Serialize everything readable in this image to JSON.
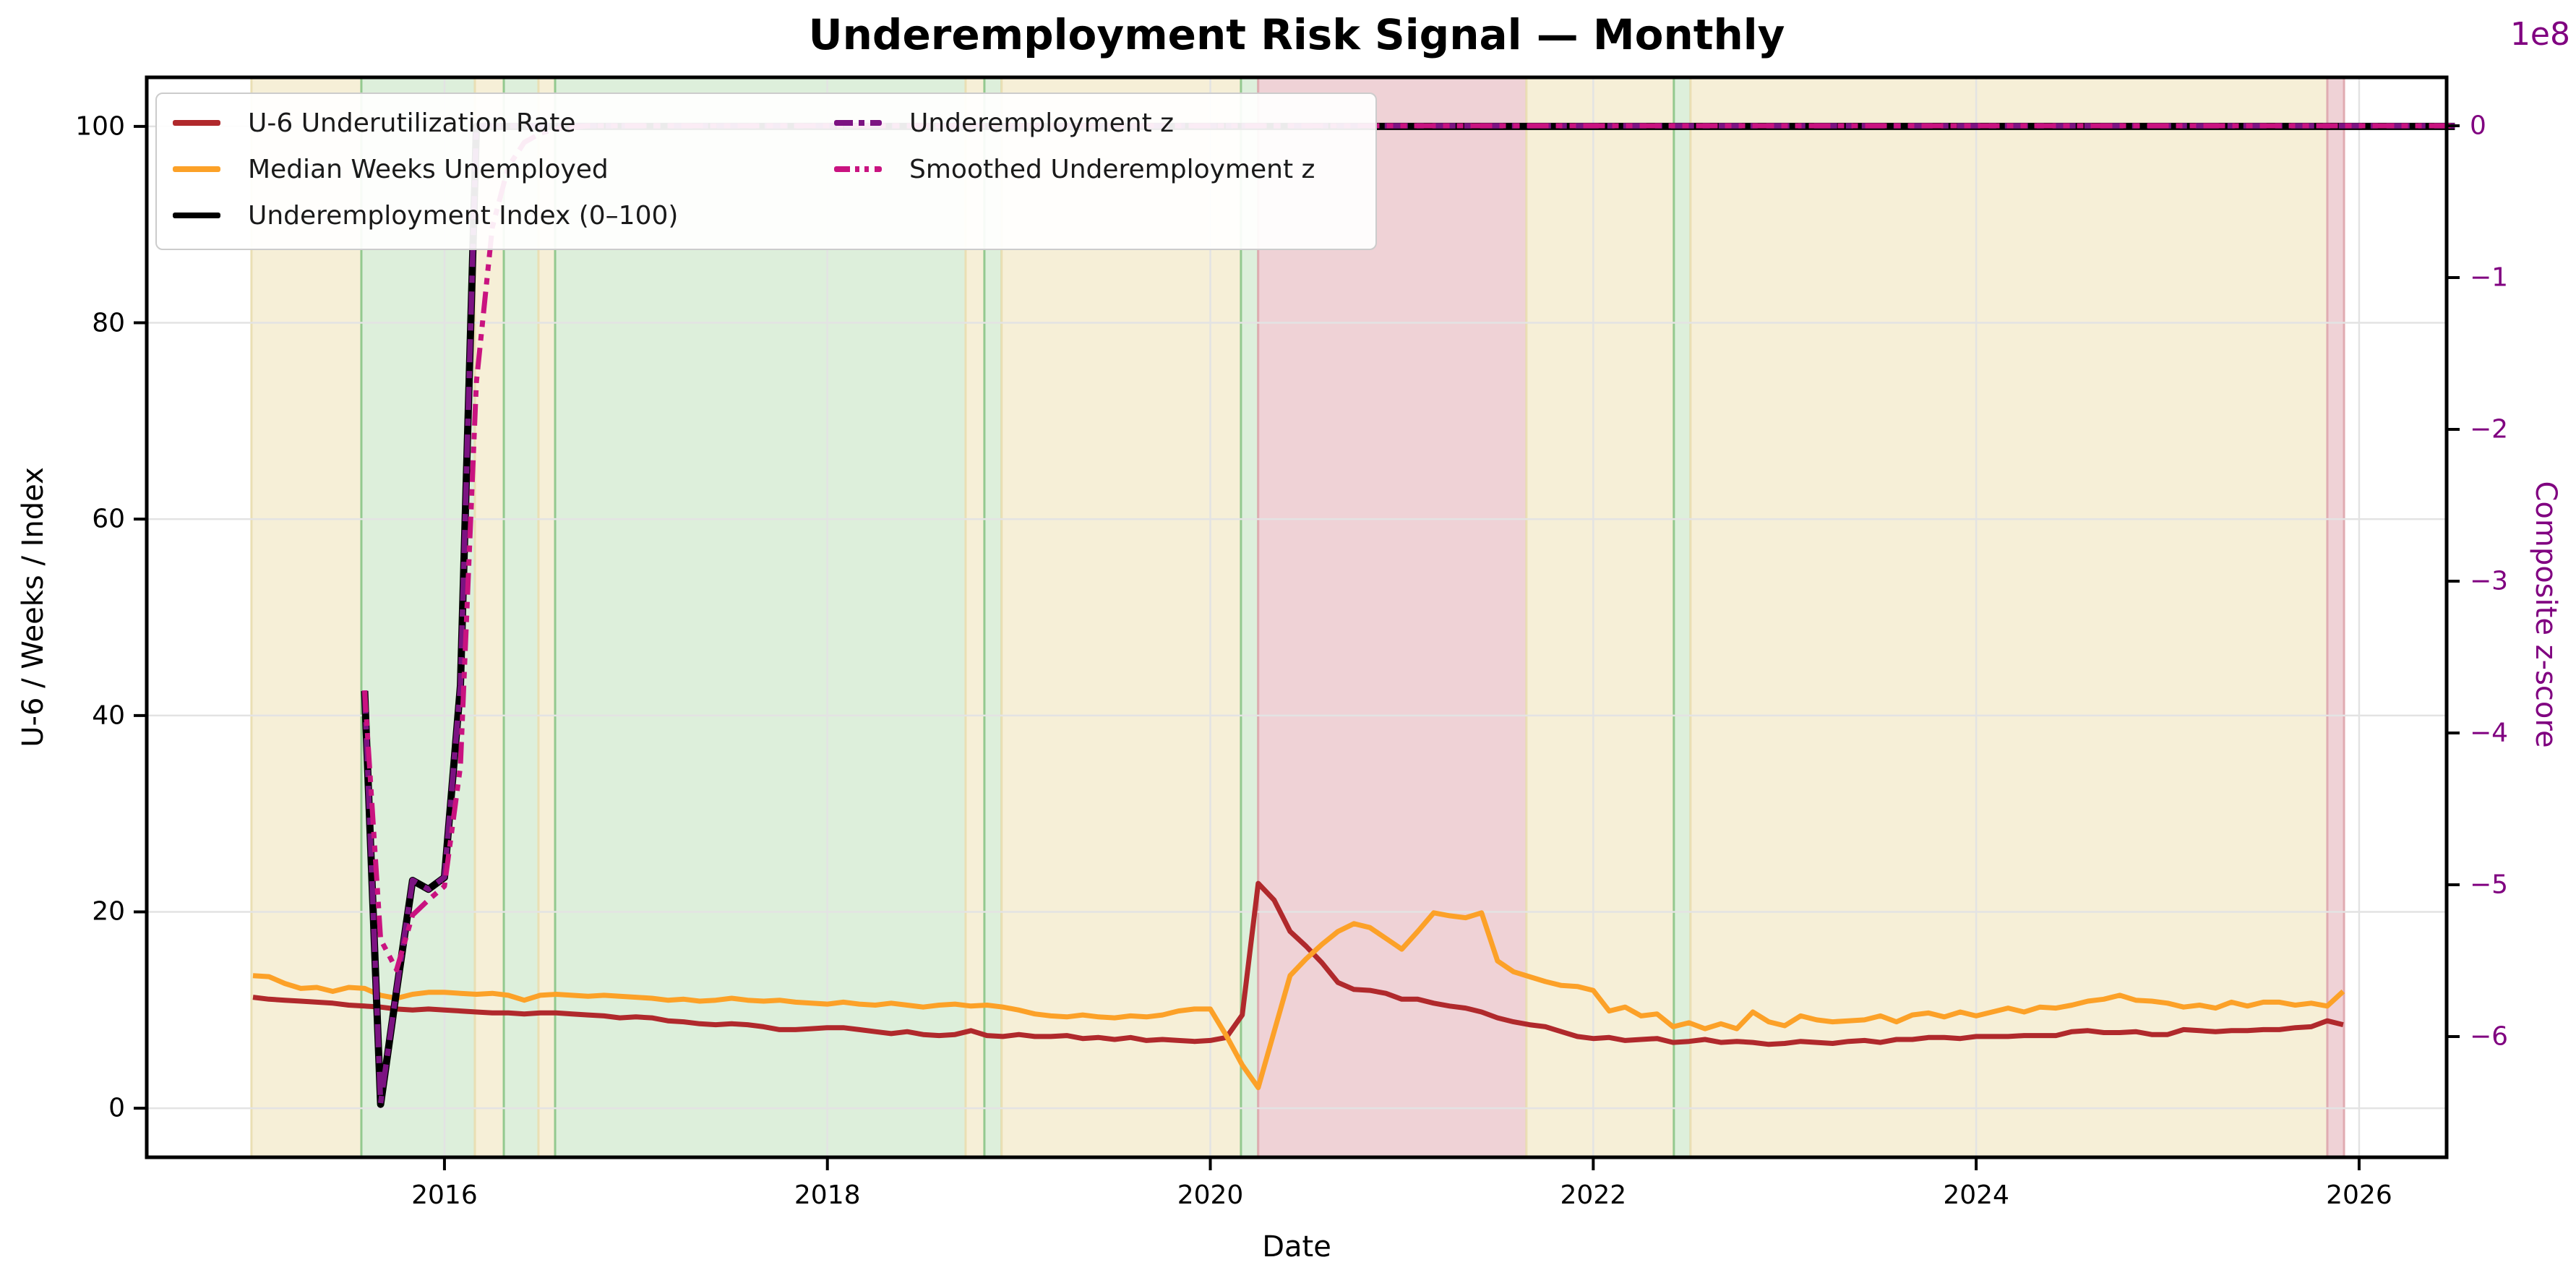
{
  "figure": {
    "title": "Underemployment Risk Signal — Monthly"
  },
  "axes": {
    "x": {
      "label": "Date",
      "tick_labels": [
        "2016",
        "2018",
        "2020",
        "2022",
        "2024",
        "2026"
      ],
      "tick_values": [
        2016,
        2018,
        2020,
        2022,
        2024,
        2026
      ],
      "lim": [
        2014.445,
        2026.457
      ]
    },
    "y_left": {
      "label": "U-6 / Weeks / Index",
      "tick_labels": [
        "0",
        "20",
        "40",
        "60",
        "80",
        "100"
      ],
      "tick_values": [
        0,
        20,
        40,
        60,
        80,
        100
      ],
      "lim": [
        -5.0,
        105.0
      ]
    },
    "y_right": {
      "label": "Composite z-score",
      "offset_text": "1e8",
      "tick_labels": [
        "0",
        "−1",
        "−2",
        "−3",
        "−4",
        "−5",
        "−6"
      ],
      "tick_values": [
        0,
        -1,
        -2,
        -3,
        -4,
        -5,
        -6
      ],
      "lim": [
        -6.795,
        0.319
      ],
      "color": "#800080"
    }
  },
  "legend": {
    "items": [
      {
        "label": "U-6 Underutilization Rate",
        "series": "u6",
        "dash": "solid",
        "col": 1,
        "row": 1
      },
      {
        "label": "Median Weeks Unemployed",
        "series": "median_weeks",
        "dash": "solid",
        "col": 1,
        "row": 2
      },
      {
        "label": "Underemployment Index (0–100)",
        "series": "index",
        "dash": "solid",
        "col": 1,
        "row": 3
      },
      {
        "label": "Underemployment z",
        "series": "z",
        "dash": "dashdot",
        "col": 2,
        "row": 1
      },
      {
        "label": "Smoothed Underemployment z",
        "series": "smoothed_z",
        "dash": "dashdotdot",
        "col": 2,
        "row": 2
      }
    ]
  },
  "palette": {
    "u6": "#b0292c",
    "median_weeks": "#fca128",
    "index": "#000000",
    "z": "#7c1382",
    "smoothed_z": "#c91380",
    "band_yellow": "#f6efd7",
    "band_green": "#ddefdb",
    "band_red": "#efd2d6",
    "band_yellow_edge": "#eadfb4",
    "band_green_edge": "#93c98f",
    "band_red_edge": "#e0abb1",
    "grid": "#e3e3e3",
    "spine": "#000000"
  },
  "chart_data": {
    "type": "line",
    "cadence": "monthly",
    "title": "Underemployment Risk Signal — Monthly",
    "xlabel": "Date",
    "ylabel_left": "U-6 / Weeks / Index",
    "ylabel_right": "Composite z-score",
    "right_axis_scale": "1e8",
    "grid": true,
    "legend_position": "upper left",
    "series": [
      {
        "name": "U-6 Underutilization Rate",
        "axis": "left",
        "color_key": "u6",
        "style": "solid",
        "width": 7,
        "start": "2015-01",
        "values": [
          11.3,
          11.1,
          11.0,
          10.9,
          10.8,
          10.7,
          10.5,
          10.4,
          10.3,
          10.1,
          10.0,
          10.1,
          10.0,
          9.9,
          9.8,
          9.7,
          9.7,
          9.6,
          9.7,
          9.7,
          9.6,
          9.5,
          9.4,
          9.2,
          9.3,
          9.2,
          8.9,
          8.8,
          8.6,
          8.5,
          8.6,
          8.5,
          8.3,
          8.0,
          8.0,
          8.1,
          8.2,
          8.2,
          8.0,
          7.8,
          7.6,
          7.8,
          7.5,
          7.4,
          7.5,
          7.9,
          7.4,
          7.3,
          7.5,
          7.3,
          7.3,
          7.4,
          7.1,
          7.2,
          7.0,
          7.2,
          6.9,
          7.0,
          6.9,
          6.8,
          6.9,
          7.2,
          9.5,
          22.9,
          21.2,
          18.0,
          16.5,
          14.8,
          12.8,
          12.1,
          12.0,
          11.7,
          11.1,
          11.1,
          10.7,
          10.4,
          10.2,
          9.8,
          9.2,
          8.8,
          8.5,
          8.3,
          7.8,
          7.3,
          7.1,
          7.2,
          6.9,
          7.0,
          7.1,
          6.7,
          6.8,
          7.0,
          6.7,
          6.8,
          6.7,
          6.5,
          6.6,
          6.8,
          6.7,
          6.6,
          6.8,
          6.9,
          6.7,
          7.0,
          7.0,
          7.2,
          7.2,
          7.1,
          7.3,
          7.3,
          7.3,
          7.4,
          7.4,
          7.4,
          7.8,
          7.9,
          7.7,
          7.7,
          7.8,
          7.5,
          7.5,
          8.0,
          7.9,
          7.8,
          7.9,
          7.9,
          8.0,
          8.0,
          8.2,
          8.3,
          8.9,
          8.5
        ]
      },
      {
        "name": "Median Weeks Unemployed",
        "axis": "left",
        "color_key": "median_weeks",
        "style": "solid",
        "width": 7,
        "start": "2015-01",
        "values": [
          13.5,
          13.4,
          12.7,
          12.2,
          12.3,
          11.9,
          12.3,
          12.2,
          11.5,
          11.2,
          11.6,
          11.8,
          11.8,
          11.7,
          11.6,
          11.7,
          11.5,
          11.0,
          11.5,
          11.6,
          11.5,
          11.4,
          11.5,
          11.4,
          11.3,
          11.2,
          11.0,
          11.1,
          10.9,
          11.0,
          11.2,
          11.0,
          10.9,
          11.0,
          10.8,
          10.7,
          10.6,
          10.8,
          10.6,
          10.5,
          10.7,
          10.5,
          10.3,
          10.5,
          10.6,
          10.4,
          10.5,
          10.3,
          10.0,
          9.6,
          9.4,
          9.3,
          9.5,
          9.3,
          9.2,
          9.4,
          9.3,
          9.5,
          9.9,
          10.1,
          10.1,
          7.4,
          4.4,
          2.1,
          7.8,
          13.5,
          15.2,
          16.7,
          18.0,
          18.8,
          18.4,
          17.3,
          16.2,
          18.0,
          19.9,
          19.6,
          19.4,
          19.9,
          15.0,
          13.9,
          13.4,
          12.9,
          12.5,
          12.4,
          12.0,
          9.9,
          10.3,
          9.4,
          9.6,
          8.3,
          8.7,
          8.1,
          8.6,
          8.1,
          9.8,
          8.8,
          8.4,
          9.4,
          9.0,
          8.8,
          8.9,
          9.0,
          9.4,
          8.8,
          9.5,
          9.7,
          9.3,
          9.8,
          9.4,
          9.8,
          10.2,
          9.8,
          10.3,
          10.2,
          10.5,
          10.9,
          11.1,
          11.5,
          11.0,
          10.9,
          10.7,
          10.3,
          10.5,
          10.2,
          10.8,
          10.4,
          10.8,
          10.8,
          10.5,
          10.7,
          10.4,
          11.9
        ]
      },
      {
        "name": "Underemployment Index (0–100)",
        "axis": "left",
        "color_key": "index",
        "style": "solid",
        "width": 10,
        "start": "2015-08",
        "values": [
          42.5,
          0.4,
          12,
          23.2,
          22.3,
          23.5,
          43,
          100,
          100,
          100,
          100,
          100,
          100,
          100,
          100,
          100,
          100,
          100,
          100,
          100,
          100,
          100,
          100,
          100,
          100,
          100,
          100,
          100,
          100,
          100,
          100,
          100,
          100,
          100,
          100,
          100,
          100,
          100,
          100,
          100,
          100,
          100,
          100,
          100,
          100,
          100,
          100,
          100,
          100,
          100,
          100,
          100,
          100,
          100,
          100,
          100,
          100,
          100,
          100,
          100,
          100,
          100,
          100,
          100,
          100,
          100,
          100,
          100,
          100,
          100,
          100,
          100,
          100,
          100,
          100,
          100,
          100,
          100,
          100,
          100,
          100,
          100,
          100,
          100,
          100,
          100,
          100,
          100,
          100,
          100,
          100,
          100,
          100,
          100,
          100,
          100,
          100,
          100,
          100,
          100,
          100,
          100,
          100,
          100,
          100,
          100,
          100,
          100,
          100,
          100,
          100,
          100,
          100,
          100,
          100,
          100,
          100,
          100,
          100,
          100,
          100,
          100,
          100,
          100,
          100,
          100,
          100,
          100,
          100,
          100,
          100,
          100
        ]
      },
      {
        "name": "Underemployment z",
        "axis": "right",
        "color_key": "z",
        "style": "dashdot",
        "width": 7.5,
        "start": "2015-08",
        "values": [
          -3.72,
          -6.44,
          -5.69,
          -4.97,
          -5.03,
          -4.95,
          -3.69,
          0,
          0,
          0,
          0,
          0,
          0,
          0,
          0,
          0,
          0,
          0,
          0,
          0,
          0,
          0,
          0,
          0,
          0,
          0,
          0,
          0,
          0,
          0,
          0,
          0,
          0,
          0,
          0,
          0,
          0,
          0,
          0,
          0,
          0,
          0,
          0,
          0,
          0,
          0,
          0,
          0,
          0,
          0,
          0,
          0,
          0,
          0,
          0,
          0,
          0,
          0,
          0,
          0,
          0,
          0,
          0,
          0,
          0,
          0,
          0,
          0,
          0,
          0,
          0,
          0,
          0,
          0,
          0,
          0,
          0,
          0,
          0,
          0,
          0,
          0,
          0,
          0,
          0,
          0,
          0,
          0,
          0,
          0,
          0,
          0,
          0,
          0,
          0,
          0,
          0,
          0,
          0,
          0,
          0,
          0,
          0,
          0,
          0,
          0,
          0,
          0,
          0,
          0,
          0,
          0,
          0,
          0,
          0,
          0,
          0,
          0,
          0,
          0,
          0,
          0,
          0,
          0,
          0,
          0,
          0,
          0,
          0,
          0,
          0,
          0
        ]
      },
      {
        "name": "Smoothed Underemployment z",
        "axis": "right",
        "color_key": "smoothed_z",
        "style": "dashdotdot",
        "width": 7,
        "start": "2015-08",
        "values": [
          -3.72,
          -5.36,
          -5.56,
          -5.2,
          -5.1,
          -5.01,
          -4.22,
          -1.69,
          -0.67,
          -0.27,
          -0.11,
          -0.05,
          -0.02,
          -0.01,
          0,
          0,
          0,
          0,
          0,
          0,
          0,
          0,
          0,
          0,
          0,
          0,
          0,
          0,
          0,
          0,
          0,
          0,
          0,
          0,
          0,
          0,
          0,
          0,
          0,
          0,
          0,
          0,
          0,
          0,
          0,
          0,
          0,
          0,
          0,
          0,
          0,
          0,
          0,
          0,
          0,
          0,
          0,
          0,
          0,
          0,
          0,
          0,
          0,
          0,
          0,
          0,
          0,
          0,
          0,
          0,
          0,
          0,
          0,
          0,
          0,
          0,
          0,
          0,
          0,
          0,
          0,
          0,
          0,
          0,
          0,
          0,
          0,
          0,
          0,
          0,
          0,
          0,
          0,
          0,
          0,
          0,
          0,
          0,
          0,
          0,
          0,
          0,
          0,
          0,
          0,
          0,
          0,
          0,
          0,
          0,
          0,
          0,
          0,
          0,
          0,
          0,
          0,
          0,
          0,
          0,
          0,
          0,
          0,
          0,
          0,
          0,
          0,
          0,
          0,
          0,
          0,
          0
        ]
      }
    ],
    "bands": [
      {
        "start": 2014.992,
        "end": 2015.566,
        "state": "yellow"
      },
      {
        "start": 2015.566,
        "end": 2016.159,
        "state": "green"
      },
      {
        "start": 2016.159,
        "end": 2016.31,
        "state": "yellow"
      },
      {
        "start": 2016.31,
        "end": 2016.491,
        "state": "green"
      },
      {
        "start": 2016.491,
        "end": 2016.578,
        "state": "yellow"
      },
      {
        "start": 2016.578,
        "end": 2018.722,
        "state": "green"
      },
      {
        "start": 2018.722,
        "end": 2018.82,
        "state": "yellow"
      },
      {
        "start": 2018.82,
        "end": 2018.91,
        "state": "green"
      },
      {
        "start": 2018.91,
        "end": 2020.16,
        "state": "yellow"
      },
      {
        "start": 2020.16,
        "end": 2020.25,
        "state": "green"
      },
      {
        "start": 2020.25,
        "end": 2021.651,
        "state": "red"
      },
      {
        "start": 2021.651,
        "end": 2022.421,
        "state": "yellow"
      },
      {
        "start": 2022.421,
        "end": 2022.508,
        "state": "green"
      },
      {
        "start": 2022.508,
        "end": 2025.834,
        "state": "yellow"
      },
      {
        "start": 2025.834,
        "end": 2025.921,
        "state": "red"
      }
    ]
  }
}
